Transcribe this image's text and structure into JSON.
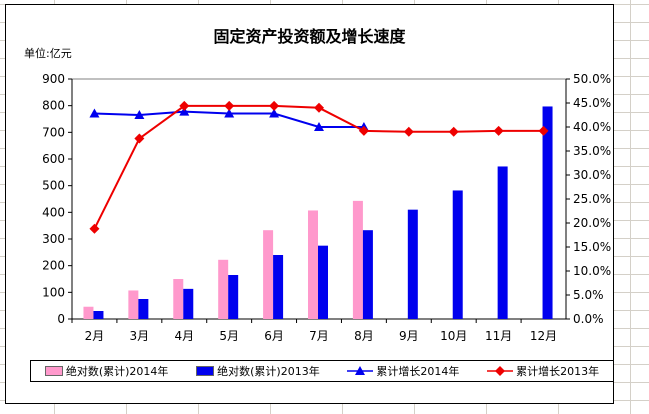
{
  "chart_data": {
    "type": "bar",
    "title": "固定资产投资额及增长速度",
    "unit_label": "单位:亿元",
    "categories": [
      "2月",
      "3月",
      "4月",
      "5月",
      "6月",
      "7月",
      "8月",
      "9月",
      "10月",
      "11月",
      "12月"
    ],
    "ylim": [
      0,
      900
    ],
    "y_ticks": [
      "0",
      "100",
      "200",
      "300",
      "400",
      "500",
      "600",
      "700",
      "800",
      "900"
    ],
    "y2lim": [
      0,
      0.5
    ],
    "y2_ticks": [
      "0.0%",
      "5.0%",
      "10.0%",
      "15.0%",
      "20.0%",
      "25.0%",
      "30.0%",
      "35.0%",
      "40.0%",
      "45.0%",
      "50.0%"
    ],
    "series": [
      {
        "name": "绝对数(累计)2014年",
        "kind": "bar",
        "axis": "left",
        "color": "#ff99cc",
        "values": [
          46,
          107,
          150,
          222,
          333,
          407,
          443,
          null,
          null,
          null,
          null
        ]
      },
      {
        "name": "绝对数(累计)2013年",
        "kind": "bar",
        "axis": "left",
        "color": "#0000ee",
        "values": [
          30,
          75,
          113,
          165,
          240,
          275,
          333,
          410,
          482,
          572,
          797
        ]
      },
      {
        "name": "累计增长2014年",
        "kind": "line",
        "axis": "right",
        "color": "#0000ee",
        "marker": "triangle",
        "values": [
          0.428,
          0.425,
          0.432,
          0.428,
          0.428,
          0.4,
          0.4,
          null,
          null,
          null,
          null
        ]
      },
      {
        "name": "累计增长2013年",
        "kind": "line",
        "axis": "right",
        "color": "#ee0000",
        "marker": "diamond",
        "values": [
          0.188,
          0.376,
          0.444,
          0.444,
          0.444,
          0.44,
          0.392,
          0.39,
          0.39,
          0.392,
          0.392
        ]
      }
    ],
    "legend_position": "bottom"
  }
}
